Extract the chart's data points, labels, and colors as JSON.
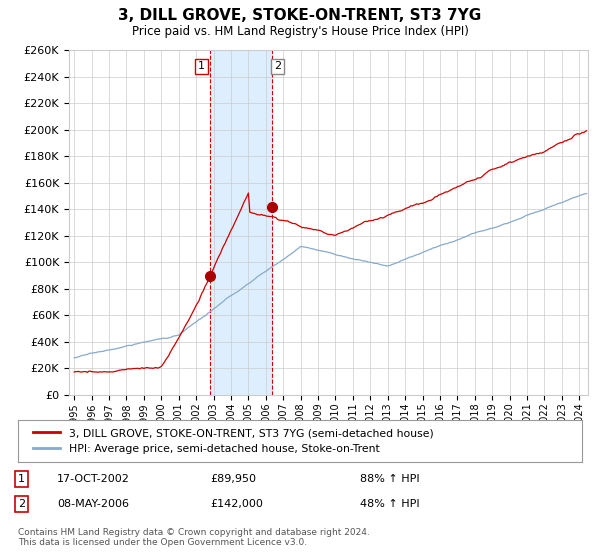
{
  "title": "3, DILL GROVE, STOKE-ON-TRENT, ST3 7YG",
  "subtitle": "Price paid vs. HM Land Registry's House Price Index (HPI)",
  "ylim": [
    0,
    260000
  ],
  "legend_line1": "3, DILL GROVE, STOKE-ON-TRENT, ST3 7YG (semi-detached house)",
  "legend_line2": "HPI: Average price, semi-detached house, Stoke-on-Trent",
  "transaction1_date": "17-OCT-2002",
  "transaction1_price": "£89,950",
  "transaction1_hpi": "88% ↑ HPI",
  "transaction1_year": 2002.8,
  "transaction1_value": 89950,
  "transaction2_date": "08-MAY-2006",
  "transaction2_price": "£142,000",
  "transaction2_hpi": "48% ↑ HPI",
  "transaction2_year": 2006.36,
  "transaction2_value": 142000,
  "footnote": "Contains HM Land Registry data © Crown copyright and database right 2024.\nThis data is licensed under the Open Government Licence v3.0.",
  "line_color_property": "#cc0000",
  "line_color_hpi": "#88aacc",
  "shade_color": "#ddeeff",
  "marker_color_property": "#aa0000",
  "grid_color": "#cccccc",
  "background_color": "#ffffff"
}
